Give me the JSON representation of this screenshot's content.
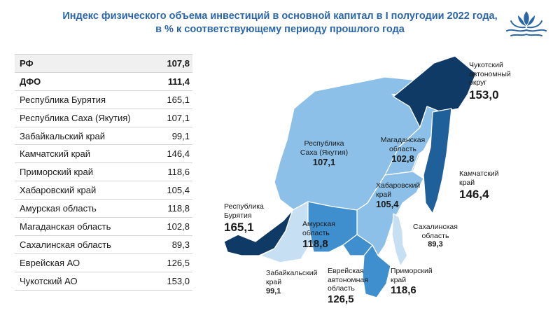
{
  "title": {
    "line1": "Индекс физического объема инвестиций в основной капитал в I полугодии 2022 года,",
    "line2": "в % к соответствующему периоду прошлого года"
  },
  "logo": {
    "icon": "lotus-waves-icon",
    "color": "#2b66a8"
  },
  "table": {
    "rows": [
      {
        "name": "РФ",
        "value": "107,8"
      },
      {
        "name": "ДФО",
        "value": "111,4"
      },
      {
        "name": "Республика Бурятия",
        "value": "165,1"
      },
      {
        "name": "Республика Саха (Якутия)",
        "value": "107,1"
      },
      {
        "name": "Забайкальский край",
        "value": "99,1"
      },
      {
        "name": "Камчатский край",
        "value": "146,4"
      },
      {
        "name": "Приморский край",
        "value": "118,6"
      },
      {
        "name": "Хабаровский край",
        "value": "105,4"
      },
      {
        "name": "Амурская область",
        "value": "118,8"
      },
      {
        "name": "Магаданская область",
        "value": "102,8"
      },
      {
        "name": "Сахалинская область",
        "value": "89,3"
      },
      {
        "name": "Еврейская АО",
        "value": "126,5"
      },
      {
        "name": "Чукотский АО",
        "value": "153,0"
      }
    ]
  },
  "map": {
    "colors": {
      "dark": "#0f3a66",
      "medium": "#1f5f9a",
      "blue": "#3f8fce",
      "light": "#8cc0e8",
      "pale": "#c7dff3",
      "border": "#ffffff"
    },
    "regions": [
      {
        "key": "chukotka",
        "name": "Чукотский автономный округ",
        "lines": [
          "Чукотский",
          "автономный",
          "округ"
        ],
        "value": "153,0",
        "color": "dark"
      },
      {
        "key": "kamchatka",
        "name": "Камчатский край",
        "lines": [
          "Камчатский",
          "край"
        ],
        "value": "146,4",
        "color": "medium"
      },
      {
        "key": "yakutia",
        "name": "Республика Саха (Якутия)",
        "lines": [
          "Республика",
          "Саха (Якутия)"
        ],
        "value": "107,1",
        "color": "light"
      },
      {
        "key": "magadan",
        "name": "Магаданская область",
        "lines": [
          "Магаданская",
          "область"
        ],
        "value": "102,8",
        "color": "light"
      },
      {
        "key": "khabarovsk",
        "name": "Хабаровский край",
        "lines": [
          "Хабаровский",
          "край"
        ],
        "value": "105,4",
        "color": "light"
      },
      {
        "key": "buryatia",
        "name": "Республика Бурятия",
        "lines": [
          "Республика",
          "Бурятия"
        ],
        "value": "165,1",
        "color": "dark"
      },
      {
        "key": "amur",
        "name": "Амурская область",
        "lines": [
          "Амурская",
          "область"
        ],
        "value": "118,8",
        "color": "blue"
      },
      {
        "key": "sakhalin",
        "name": "Сахалинская область",
        "lines": [
          "Сахалинская",
          "область"
        ],
        "value": "89,3",
        "color": "pale"
      },
      {
        "key": "zabaikal",
        "name": "Забайкальский край",
        "lines": [
          "Забайкальский",
          "край"
        ],
        "value": "99,1",
        "color": "pale"
      },
      {
        "key": "jewish",
        "name": "Еврейская автономная область",
        "lines": [
          "Еврейская",
          "автономная",
          "область"
        ],
        "value": "126,5",
        "color": "blue"
      },
      {
        "key": "primorye",
        "name": "Приморский край",
        "lines": [
          "Приморский",
          "край"
        ],
        "value": "118,6",
        "color": "blue"
      }
    ]
  }
}
